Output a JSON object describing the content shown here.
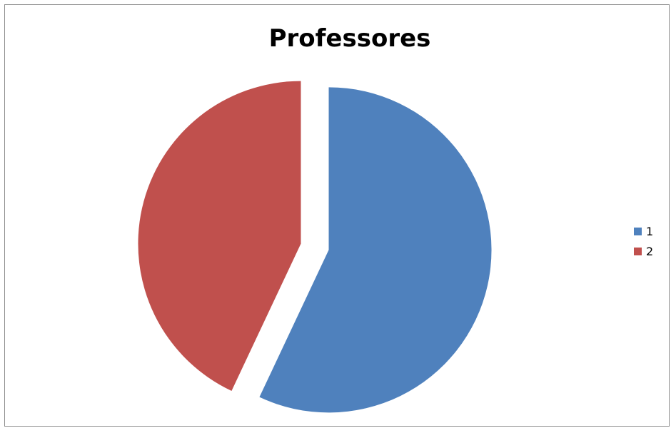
{
  "chart_data": {
    "type": "pie",
    "title": "Professores",
    "categories": [
      "1",
      "2"
    ],
    "values": [
      57,
      43
    ],
    "colors": [
      "#4f81bd",
      "#c0504d"
    ],
    "exploded": true,
    "legend_position": "right"
  }
}
